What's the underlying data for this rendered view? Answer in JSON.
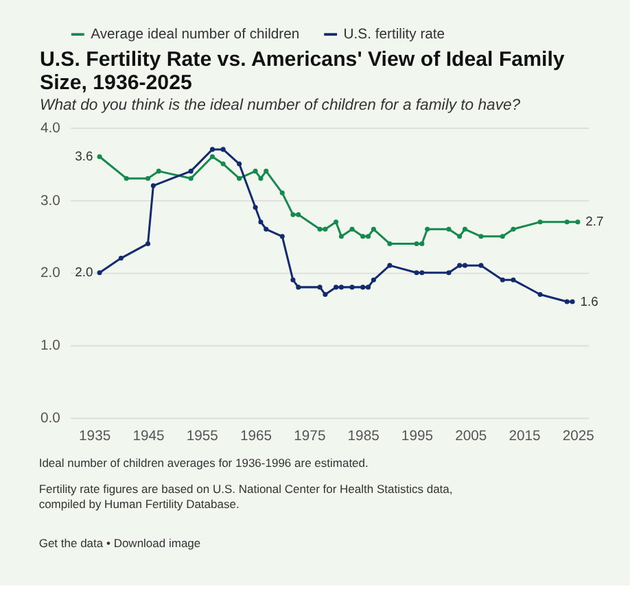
{
  "chart_data": {
    "type": "line",
    "title": "U.S. Fertility Rate vs. Americans' View of Ideal Family Size, 1936-2025",
    "subtitle": "What do you think is the ideal number of children for a family to have?",
    "series": [
      {
        "name": "Average ideal number of children",
        "color": "#16894f",
        "x": [
          1936,
          1941,
          1945,
          1947,
          1953,
          1957,
          1959,
          1962,
          1965,
          1966,
          1967,
          1970,
          1972,
          1973,
          1977,
          1978,
          1980,
          1981,
          1983,
          1985,
          1986,
          1987,
          1990,
          1995,
          1996,
          1997,
          2001,
          2003,
          2004,
          2007,
          2011,
          2013,
          2018,
          2023,
          2025
        ],
        "values": [
          3.6,
          3.3,
          3.3,
          3.4,
          3.3,
          3.6,
          3.5,
          3.3,
          3.4,
          3.3,
          3.4,
          3.1,
          2.8,
          2.8,
          2.6,
          2.6,
          2.7,
          2.5,
          2.6,
          2.5,
          2.5,
          2.6,
          2.4,
          2.4,
          2.4,
          2.6,
          2.6,
          2.5,
          2.6,
          2.5,
          2.5,
          2.6,
          2.7,
          2.7,
          2.7
        ],
        "value_labels": [
          "3.6",
          null,
          null,
          null,
          null,
          null,
          null,
          null,
          null,
          null,
          null,
          null,
          null,
          null,
          null,
          null,
          null,
          null,
          null,
          null,
          null,
          null,
          null,
          null,
          null,
          null,
          null,
          null,
          null,
          null,
          null,
          null,
          null,
          null,
          "2.7"
        ]
      },
      {
        "name": "U.S. fertility rate",
        "color": "#132b6e",
        "x": [
          1936,
          1940,
          1945,
          1946,
          1953,
          1957,
          1959,
          1962,
          1965,
          1966,
          1967,
          1970,
          1972,
          1973,
          1977,
          1978,
          1980,
          1981,
          1983,
          1985,
          1986,
          1987,
          1990,
          1995,
          1996,
          2001,
          2003,
          2004,
          2007,
          2011,
          2013,
          2018,
          2023,
          2024
        ],
        "values": [
          2.0,
          2.2,
          2.4,
          3.2,
          3.4,
          3.7,
          3.7,
          3.5,
          2.9,
          2.7,
          2.6,
          2.5,
          1.9,
          1.8,
          1.8,
          1.7,
          1.8,
          1.8,
          1.8,
          1.8,
          1.8,
          1.9,
          2.1,
          2.0,
          2.0,
          2.0,
          2.1,
          2.1,
          2.1,
          1.9,
          1.9,
          1.7,
          1.6,
          1.6
        ],
        "value_labels": [
          "2.0",
          null,
          null,
          null,
          null,
          null,
          null,
          null,
          null,
          null,
          null,
          null,
          null,
          null,
          null,
          null,
          null,
          null,
          null,
          null,
          null,
          null,
          null,
          null,
          null,
          null,
          null,
          null,
          null,
          null,
          null,
          null,
          null,
          "1.6"
        ]
      }
    ],
    "xlim": [
      1930.5,
      2027
    ],
    "xticks": [
      1935,
      1945,
      1955,
      1965,
      1975,
      1985,
      1995,
      2005,
      2015,
      2025
    ],
    "ylim": [
      0,
      4
    ],
    "yticks": [
      {
        "value": 0,
        "label": "0.0"
      },
      {
        "value": 1,
        "label": "1.0"
      },
      {
        "value": 2,
        "label": "2.0"
      },
      {
        "value": 3,
        "label": "3.0"
      },
      {
        "value": 4,
        "label": "4.0"
      }
    ],
    "grid": "y",
    "legend": "top left",
    "marker": "circle",
    "line_style": "solid",
    "annotations": [
      "Ideal number of children averages for 1936-1996 are estimated.",
      "Fertility rate figures are based on U.S. National Center for Health Statistics data, compiled by Human Fertility Database.",
      "Get the data • Download image"
    ]
  }
}
